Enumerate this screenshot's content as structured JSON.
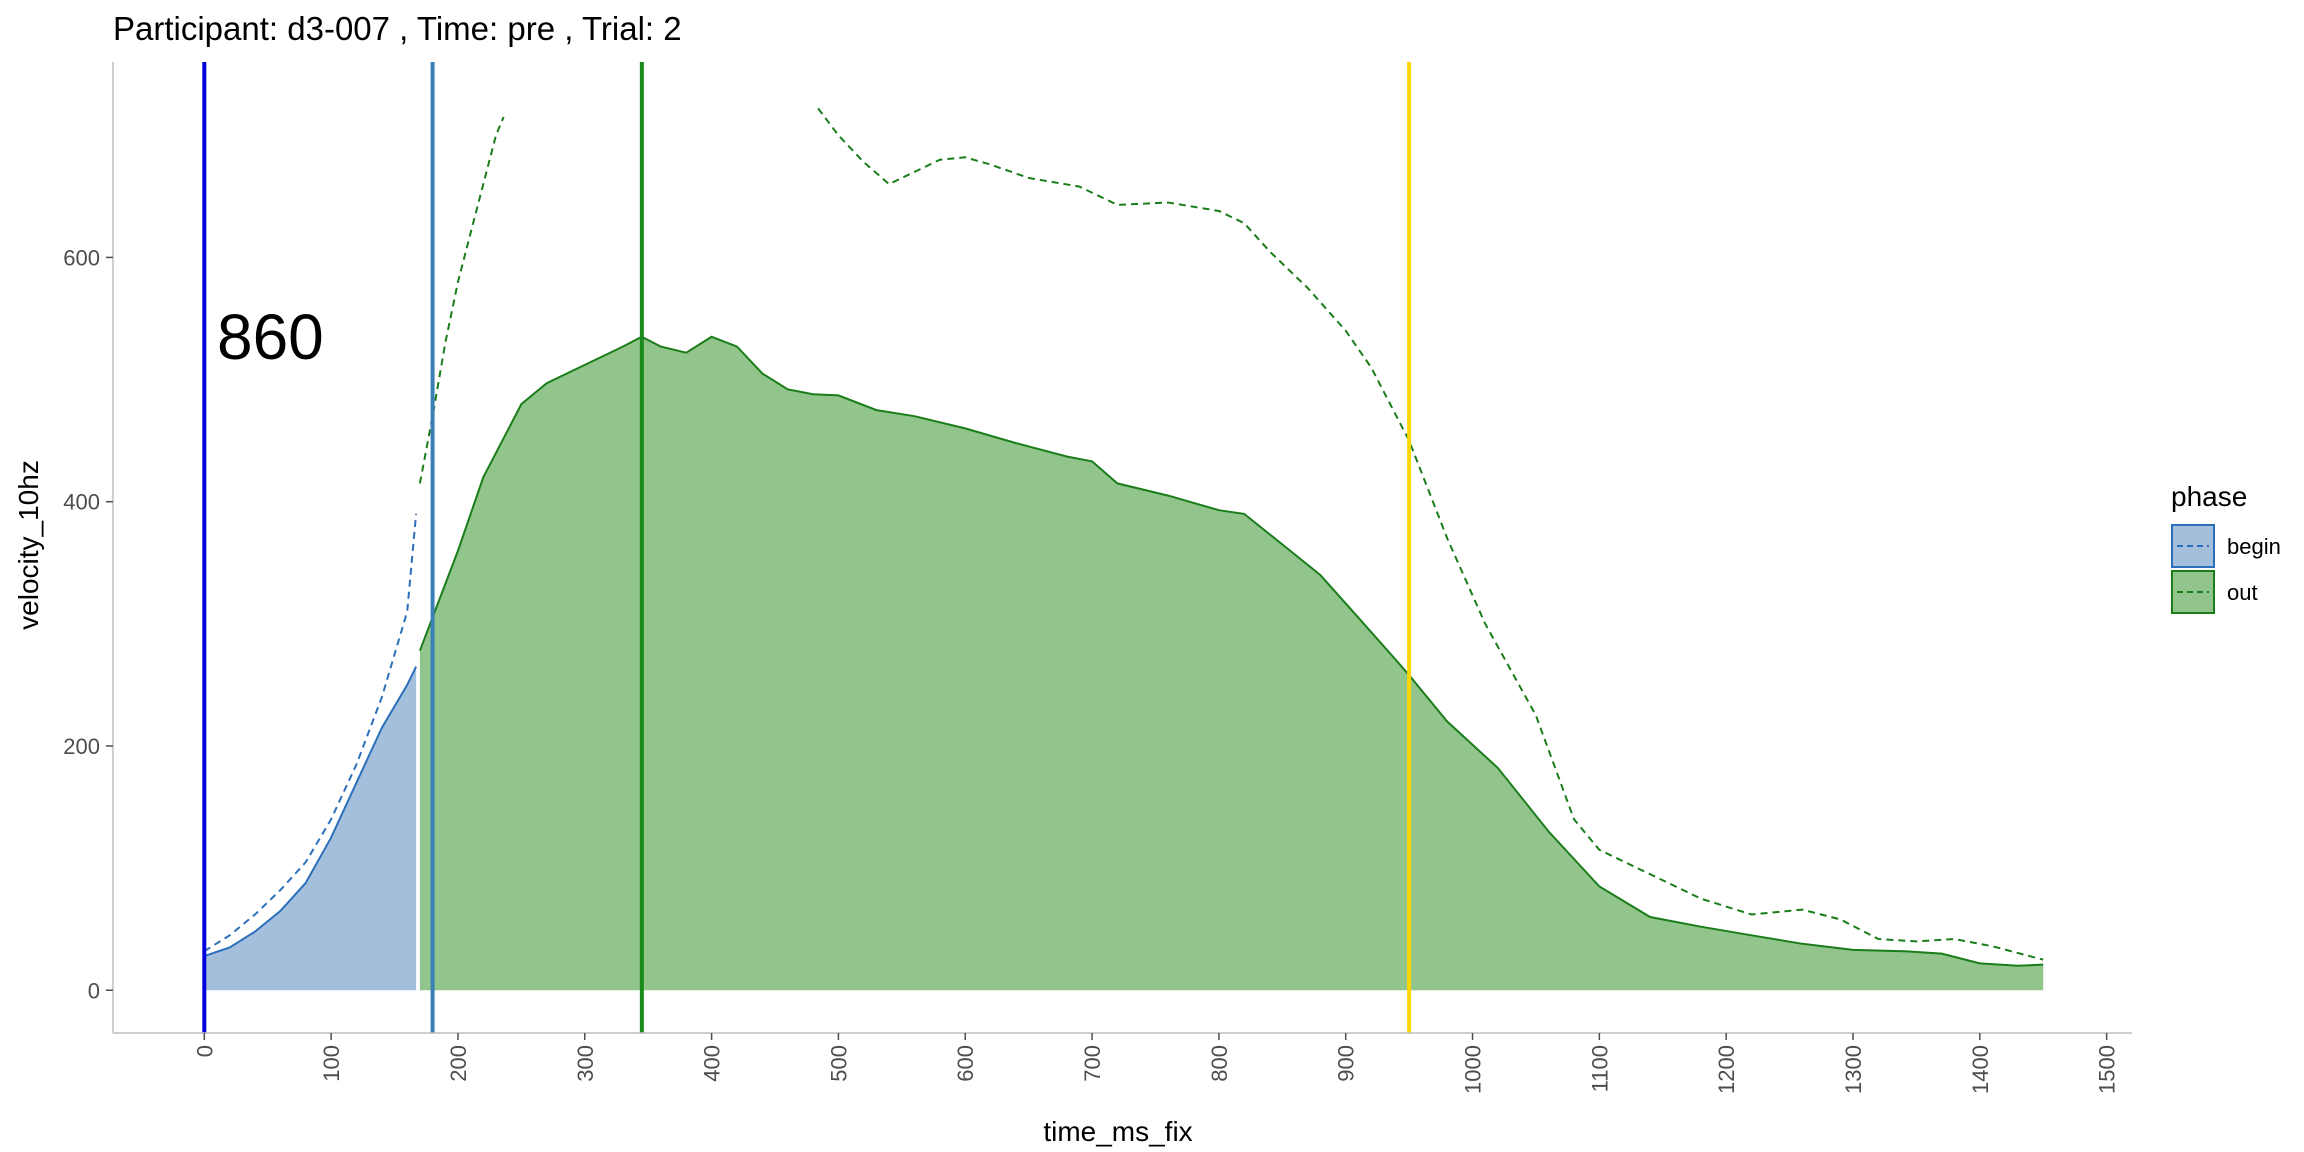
{
  "chart_data": {
    "type": "area",
    "title": "Participant:  d3-007 , Time: pre , Trial:  2",
    "xlabel": "time_ms_fix",
    "ylabel": "velocity_10hz",
    "xlim": [
      -72,
      1520
    ],
    "ylim": [
      -35,
      760
    ],
    "x_ticks": [
      0,
      100,
      200,
      300,
      400,
      500,
      600,
      700,
      800,
      900,
      1000,
      1100,
      1200,
      1300,
      1400,
      1500
    ],
    "y_ticks": [
      0,
      200,
      400,
      600
    ],
    "grid": false,
    "legend": {
      "title": "phase",
      "position": "right",
      "entries": [
        {
          "label": "begin",
          "fill": "#a3bfdb",
          "line": "#2c6fbb"
        },
        {
          "label": "out",
          "fill": "#91c58b",
          "line": "#1a7d1a"
        }
      ]
    },
    "annotation": {
      "text": "860",
      "x": 10,
      "y": 535
    },
    "vlines": [
      {
        "x": 0,
        "color": "#0000dd"
      },
      {
        "x": 180,
        "color": "#3a7fb5"
      },
      {
        "x": 345,
        "color": "#1a8a1a"
      },
      {
        "x": 950,
        "color": "#ffd700"
      }
    ],
    "series": [
      {
        "name": "begin",
        "role": "area",
        "fill": "#a3bfdb",
        "line": "#2c6fbb",
        "x": [
          0,
          20,
          40,
          60,
          80,
          100,
          120,
          140,
          160,
          167
        ],
        "y": [
          28,
          35,
          48,
          65,
          88,
          125,
          170,
          215,
          250,
          265
        ]
      },
      {
        "name": "out",
        "role": "area",
        "fill": "#91c58b",
        "line": "#1a7d1a",
        "x": [
          170,
          200,
          220,
          250,
          270,
          300,
          330,
          345,
          360,
          380,
          400,
          420,
          440,
          460,
          480,
          500,
          530,
          560,
          600,
          640,
          680,
          700,
          720,
          760,
          800,
          820,
          850,
          880,
          910,
          940,
          950,
          980,
          1020,
          1060,
          1100,
          1140,
          1180,
          1220,
          1260,
          1300,
          1340,
          1370,
          1400,
          1430,
          1450
        ],
        "y": [
          278,
          360,
          420,
          480,
          497,
          512,
          527,
          535,
          527,
          522,
          535,
          527,
          505,
          492,
          488,
          487,
          475,
          470,
          460,
          448,
          437,
          433,
          415,
          405,
          393,
          390,
          365,
          340,
          305,
          270,
          258,
          220,
          182,
          130,
          85,
          60,
          52,
          45,
          38,
          33,
          32,
          30,
          22,
          20,
          21
        ]
      },
      {
        "name": "begin",
        "role": "dashed",
        "line": "#2c6fbb",
        "x": [
          0,
          20,
          40,
          60,
          80,
          100,
          120,
          140,
          160,
          167
        ],
        "y": [
          32,
          45,
          62,
          82,
          105,
          140,
          185,
          240,
          310,
          390
        ]
      },
      {
        "name": "out",
        "role": "dashed",
        "line": "#1a7d1a",
        "x": [
          170,
          180,
          190,
          200,
          210,
          220,
          230,
          236
        ],
        "y": [
          415,
          470,
          530,
          580,
          620,
          660,
          700,
          715
        ]
      },
      {
        "name": "out",
        "role": "dashed",
        "line": "#1a7d1a",
        "x": [
          484,
          500,
          520,
          540,
          560,
          580,
          600,
          620,
          650,
          690,
          720,
          760,
          800,
          820,
          840,
          870,
          900,
          920,
          950,
          980,
          1010,
          1050,
          1080,
          1100,
          1140,
          1180,
          1220,
          1260,
          1290,
          1320,
          1350,
          1380,
          1410,
          1450
        ],
        "y": [
          722,
          700,
          678,
          660,
          670,
          680,
          682,
          676,
          665,
          658,
          643,
          645,
          638,
          628,
          605,
          575,
          540,
          510,
          450,
          370,
          300,
          225,
          140,
          115,
          95,
          75,
          62,
          66,
          58,
          42,
          40,
          42,
          36,
          25
        ]
      }
    ]
  }
}
